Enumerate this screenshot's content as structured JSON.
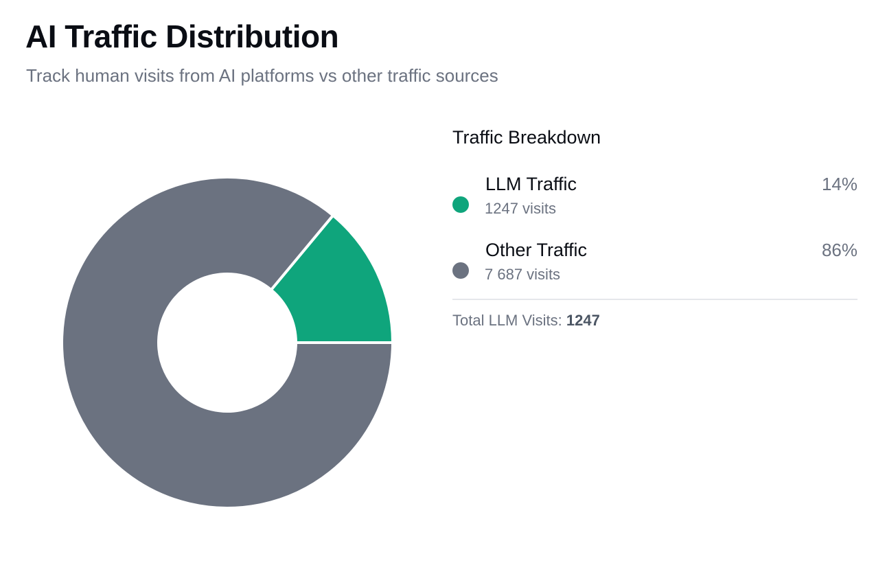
{
  "header": {
    "title": "AI Traffic Distribution",
    "subtitle": "Track human visits from AI platforms vs other traffic sources"
  },
  "breakdown": {
    "title": "Traffic Breakdown",
    "items": [
      {
        "label": "LLM Traffic",
        "visits_text": "1247 visits",
        "percent_text": "14%",
        "color": "#0fa57c"
      },
      {
        "label": "Other Traffic",
        "visits_text": "7 687 visits",
        "percent_text": "86%",
        "color": "#6b7280"
      }
    ],
    "total_label": "Total LLM Visits: ",
    "total_value": "1247"
  },
  "chart_data": {
    "type": "pie",
    "donut": true,
    "categories": [
      "LLM Traffic",
      "Other Traffic"
    ],
    "values": [
      1247,
      7687
    ],
    "colors": [
      "#0fa57c",
      "#6b7280"
    ],
    "title": "",
    "legend": "right"
  }
}
